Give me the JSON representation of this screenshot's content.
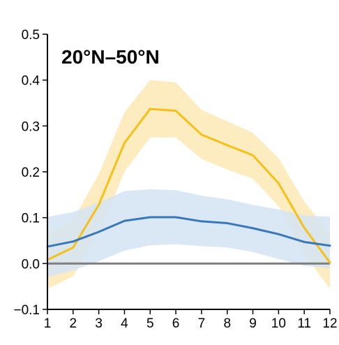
{
  "chart_data": {
    "type": "line",
    "title": "20°N–50°N",
    "xlabel": "",
    "ylabel": "",
    "x": [
      1,
      2,
      3,
      4,
      5,
      6,
      7,
      8,
      9,
      10,
      11,
      12
    ],
    "xlim": [
      1,
      12
    ],
    "ylim": [
      -0.1,
      0.5
    ],
    "x_ticks": [
      "1",
      "2",
      "3",
      "4",
      "5",
      "6",
      "7",
      "8",
      "9",
      "10",
      "11",
      "12"
    ],
    "y_ticks": [
      "−0.1",
      "0.0",
      "0.1",
      "0.2",
      "0.3",
      "0.4",
      "0.5"
    ],
    "y_tick_values": [
      -0.1,
      0.0,
      0.1,
      0.2,
      0.3,
      0.4,
      0.5
    ],
    "grid": false,
    "reference_line": {
      "y": 0.0,
      "color": "#808080"
    },
    "series": [
      {
        "color": "#f5c018",
        "band_color": "#fde9b4",
        "values": [
          0.008,
          0.035,
          0.128,
          0.263,
          0.337,
          0.333,
          0.281,
          0.258,
          0.236,
          0.175,
          0.078,
          0.002
        ],
        "lower": [
          -0.055,
          -0.028,
          0.065,
          0.2,
          0.275,
          0.275,
          0.228,
          0.205,
          0.185,
          0.125,
          0.02,
          -0.055
        ],
        "upper": [
          0.065,
          0.095,
          0.195,
          0.33,
          0.4,
          0.395,
          0.335,
          0.31,
          0.285,
          0.23,
          0.135,
          0.065
        ]
      },
      {
        "color": "#3878b8",
        "band_color": "#d4e4f3",
        "values": [
          0.037,
          0.048,
          0.069,
          0.093,
          0.101,
          0.101,
          0.092,
          0.088,
          0.077,
          0.064,
          0.047,
          0.039
        ],
        "lower": [
          -0.03,
          -0.015,
          0.005,
          0.028,
          0.04,
          0.042,
          0.038,
          0.035,
          0.025,
          0.01,
          -0.005,
          -0.01
        ],
        "upper": [
          0.102,
          0.112,
          0.133,
          0.158,
          0.162,
          0.16,
          0.148,
          0.14,
          0.128,
          0.118,
          0.105,
          0.102
        ]
      }
    ]
  }
}
